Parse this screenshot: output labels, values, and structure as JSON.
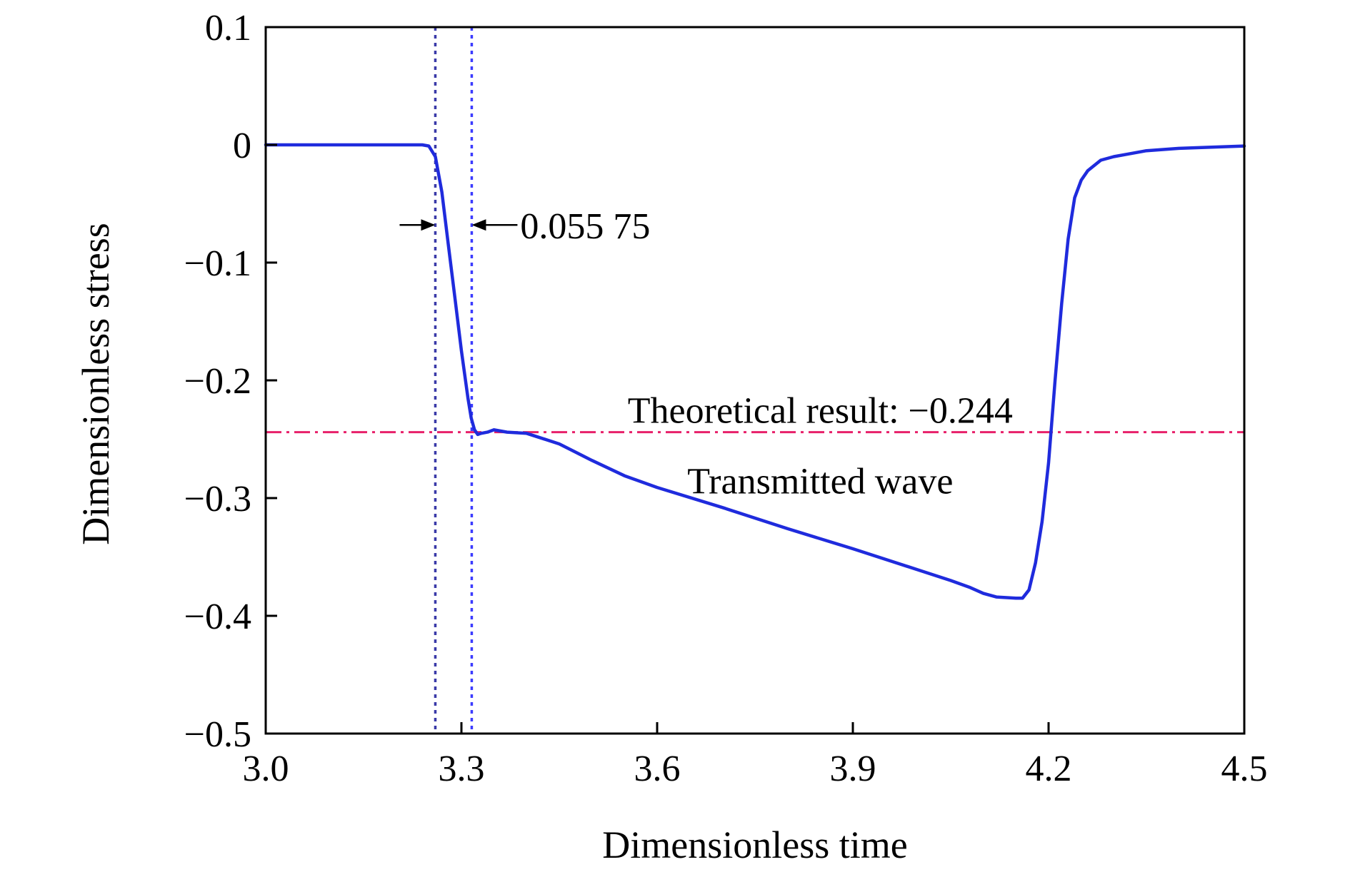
{
  "chart_data": {
    "type": "line",
    "xlabel": "Dimensionless time",
    "ylabel": "Dimensionless stress",
    "xlim": [
      3.0,
      4.5
    ],
    "ylim": [
      -0.5,
      0.1
    ],
    "xticks": [
      3.0,
      3.3,
      3.6,
      3.9,
      4.2,
      4.5
    ],
    "xtick_labels": [
      "3.0",
      "3.3",
      "3.6",
      "3.9",
      "4.2",
      "4.5"
    ],
    "yticks": [
      0.1,
      0,
      -0.1,
      -0.2,
      -0.3,
      -0.4,
      -0.5
    ],
    "ytick_labels": [
      "0.1",
      "0",
      "−0.1",
      "−0.2",
      "−0.3",
      "−0.4",
      "−0.5"
    ],
    "grid": false,
    "series": [
      {
        "color": "#1f2bdd",
        "x": [
          3.0,
          3.1,
          3.2,
          3.24,
          3.25,
          3.26,
          3.27,
          3.28,
          3.29,
          3.3,
          3.31,
          3.315,
          3.32,
          3.325,
          3.33,
          3.34,
          3.35,
          3.36,
          3.37,
          3.4,
          3.45,
          3.5,
          3.55,
          3.6,
          3.7,
          3.8,
          3.9,
          4.0,
          4.05,
          4.08,
          4.1,
          4.12,
          4.15,
          4.16,
          4.17,
          4.18,
          4.19,
          4.2,
          4.21,
          4.22,
          4.23,
          4.24,
          4.25,
          4.26,
          4.28,
          4.3,
          4.32,
          4.35,
          4.4,
          4.45,
          4.5
        ],
        "y": [
          0,
          0,
          0,
          0,
          -0.001,
          -0.01,
          -0.04,
          -0.085,
          -0.13,
          -0.175,
          -0.215,
          -0.232,
          -0.242,
          -0.246,
          -0.245,
          -0.244,
          -0.242,
          -0.243,
          -0.244,
          -0.245,
          -0.254,
          -0.268,
          -0.281,
          -0.291,
          -0.308,
          -0.326,
          -0.343,
          -0.361,
          -0.37,
          -0.376,
          -0.381,
          -0.384,
          -0.385,
          -0.385,
          -0.378,
          -0.355,
          -0.32,
          -0.27,
          -0.2,
          -0.135,
          -0.08,
          -0.045,
          -0.03,
          -0.022,
          -0.013,
          -0.01,
          -0.008,
          -0.005,
          -0.003,
          -0.002,
          -0.001
        ]
      }
    ],
    "reference_lines": [
      {
        "orientation": "horizontal",
        "value": -0.244,
        "style": "dash-dot",
        "color": "#e8206a"
      },
      {
        "orientation": "vertical",
        "value": 3.26,
        "style": "dotted",
        "color": "#3a3aa8"
      },
      {
        "orientation": "vertical",
        "value": 3.3158,
        "style": "dotted",
        "color": "#3c3cff"
      }
    ],
    "annotations": {
      "interval_label": "0.055 75",
      "interval_from": 3.26,
      "interval_to": 3.3158,
      "interval_y": -0.068,
      "theory_label": "Theoretical result: −0.244",
      "theory_label_x": 3.85,
      "theory_label_y": -0.225,
      "wave_label": "Transmitted wave",
      "wave_label_x": 3.85,
      "wave_label_y": -0.285
    },
    "colors": {
      "axis": "#000000",
      "series": "#1f2bdd",
      "theory": "#e8206a"
    }
  }
}
